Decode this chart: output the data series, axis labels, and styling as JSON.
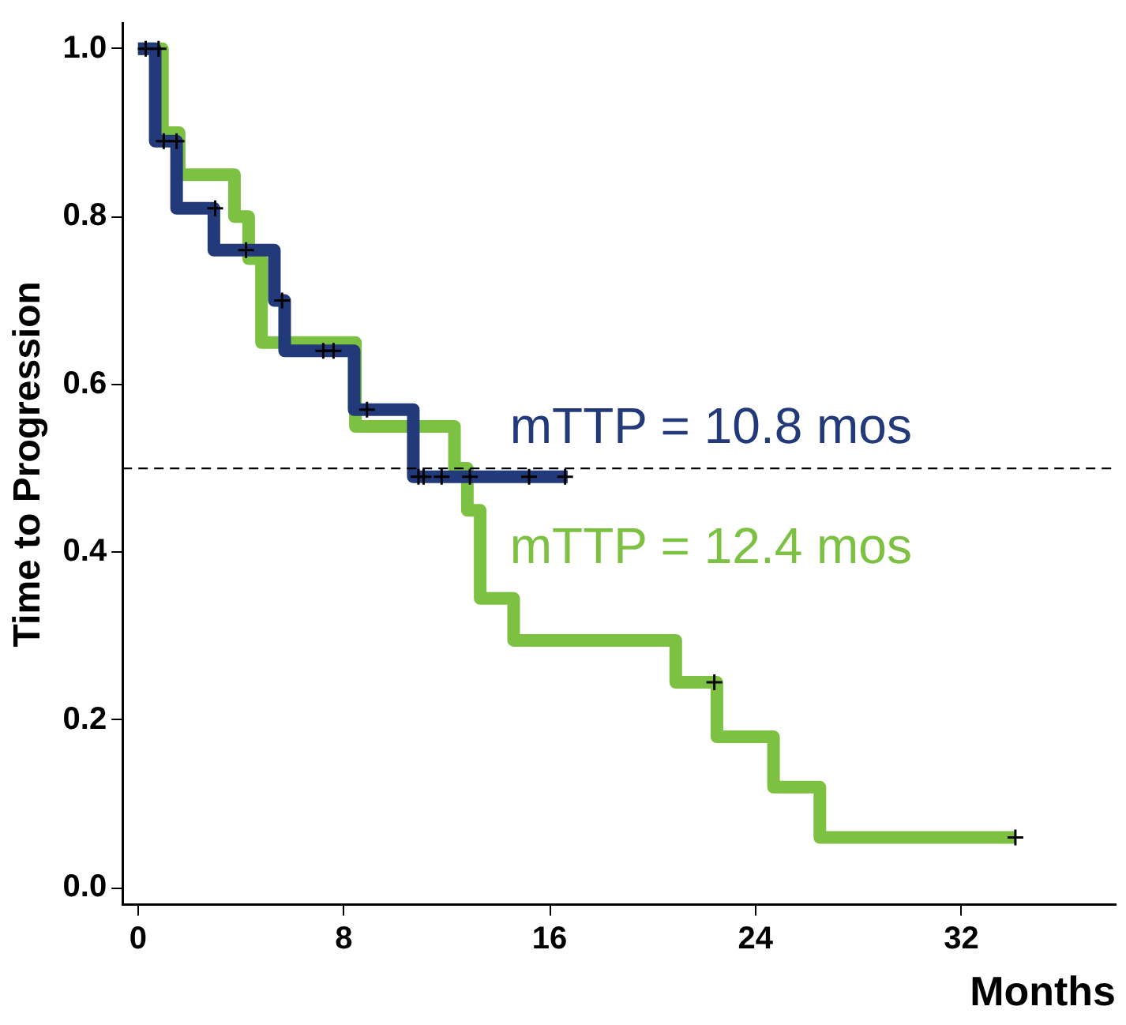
{
  "chart_data": {
    "type": "step",
    "xlabel": "Months",
    "ylabel": "Time to Progression",
    "series": [
      {
        "name": "mTTP = 10.8 mos",
        "color": "#233a7a",
        "x": [
          0,
          0.67,
          1.5,
          2.95,
          5.3,
          5.7,
          8.4,
          10.7,
          16.7
        ],
        "values": [
          1,
          0.89,
          0.81,
          0.76,
          0.7,
          0.64,
          0.57,
          0.49,
          0.49
        ]
      },
      {
        "name": "mTTP = 12.4 mos",
        "color": "#7dc142",
        "x": [
          0,
          0.95,
          1.6,
          3.75,
          4.3,
          4.8,
          8.45,
          12.3,
          12.8,
          13.3,
          14.6,
          20.9,
          22.5,
          24.7,
          26.5,
          34.1
        ],
        "values": [
          1,
          0.9,
          0.85,
          0.8,
          0.75,
          0.65,
          0.55,
          0.5,
          0.45,
          0.345,
          0.295,
          0.245,
          0.18,
          0.12,
          0.06,
          0.06
        ]
      },
      {
        "type": "scatter",
        "color": "#000000",
        "marker": "cross",
        "x": [
          0.3,
          0.8,
          1.0,
          1.5,
          3.0,
          4.2,
          5.6,
          7.2,
          7.6,
          8.9,
          10.9,
          11.1,
          11.8,
          12.9,
          15.2,
          16.6,
          22.4,
          34.1
        ],
        "values": [
          1,
          1,
          0.89,
          0.89,
          0.81,
          0.76,
          0.7,
          0.64,
          0.64,
          0.57,
          0.49,
          0.49,
          0.49,
          0.49,
          0.49,
          0.49,
          0.245,
          0.06
        ]
      }
    ],
    "xlim": [
      -0.6,
      38
    ],
    "xticks": [
      0,
      8,
      16,
      24,
      32
    ],
    "ylim": [
      -0.02,
      1.03
    ],
    "yticks": [
      {
        "value": 0,
        "label": "0.0"
      },
      {
        "value": 0.2,
        "label": "0.2"
      },
      {
        "value": 0.4,
        "label": "0.4"
      },
      {
        "value": 0.6,
        "label": "0.6"
      },
      {
        "value": 0.8,
        "label": "0.8"
      },
      {
        "value": 1,
        "label": "1.0"
      }
    ],
    "grid": false,
    "legend": false,
    "ref_lines": [
      {
        "axis": "y",
        "value": 0.5,
        "color": "#000000",
        "line_style": "dashed"
      }
    ]
  }
}
